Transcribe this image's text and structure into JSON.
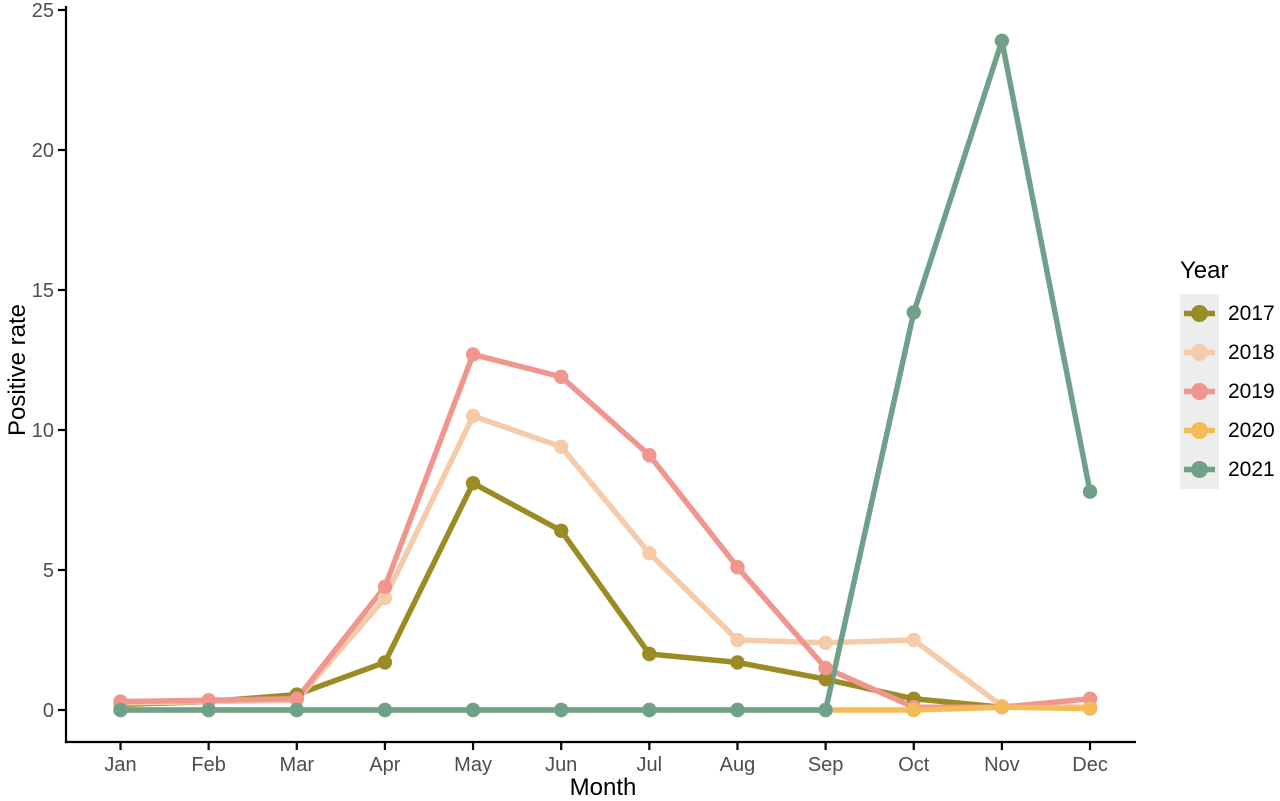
{
  "chart_data": {
    "type": "line",
    "title": "",
    "xlabel": "Month",
    "ylabel": "Positive rate",
    "legend_title": "Year",
    "legend_position": "right",
    "grid": false,
    "background": "#ffffff",
    "axis_color": "#000000",
    "tick_label_color": "#4D4D4D",
    "legend_key_bg": "#EDEDED",
    "categories": [
      "Jan",
      "Feb",
      "Mar",
      "Apr",
      "May",
      "Jun",
      "Jul",
      "Aug",
      "Sep",
      "Oct",
      "Nov",
      "Dec"
    ],
    "ylim": [
      0,
      25
    ],
    "yticks": [
      0,
      5,
      10,
      15,
      20,
      25
    ],
    "series": [
      {
        "name": "2017",
        "color": "#9B8B25",
        "values": [
          0.2,
          0.3,
          0.55,
          1.7,
          8.1,
          6.4,
          2.0,
          1.7,
          1.1,
          0.4,
          0.1,
          0.1
        ]
      },
      {
        "name": "2018",
        "color": "#F5CBAA",
        "values": [
          0.25,
          0.3,
          0.35,
          4.0,
          10.5,
          9.4,
          5.6,
          2.5,
          2.4,
          2.5,
          0.15,
          0.1
        ]
      },
      {
        "name": "2019",
        "color": "#F0968F",
        "values": [
          0.3,
          0.35,
          0.4,
          4.4,
          12.7,
          11.9,
          9.1,
          5.1,
          1.5,
          0.1,
          0.1,
          0.4
        ]
      },
      {
        "name": "2020",
        "color": "#F3BC58",
        "values": [
          0,
          0,
          0,
          0,
          0,
          0,
          0,
          0,
          0,
          0,
          0.1,
          0.05
        ]
      },
      {
        "name": "2021",
        "color": "#6FA089",
        "values": [
          0,
          0,
          0,
          0,
          0,
          0,
          0,
          0,
          0,
          14.2,
          23.9,
          7.8
        ]
      }
    ]
  }
}
